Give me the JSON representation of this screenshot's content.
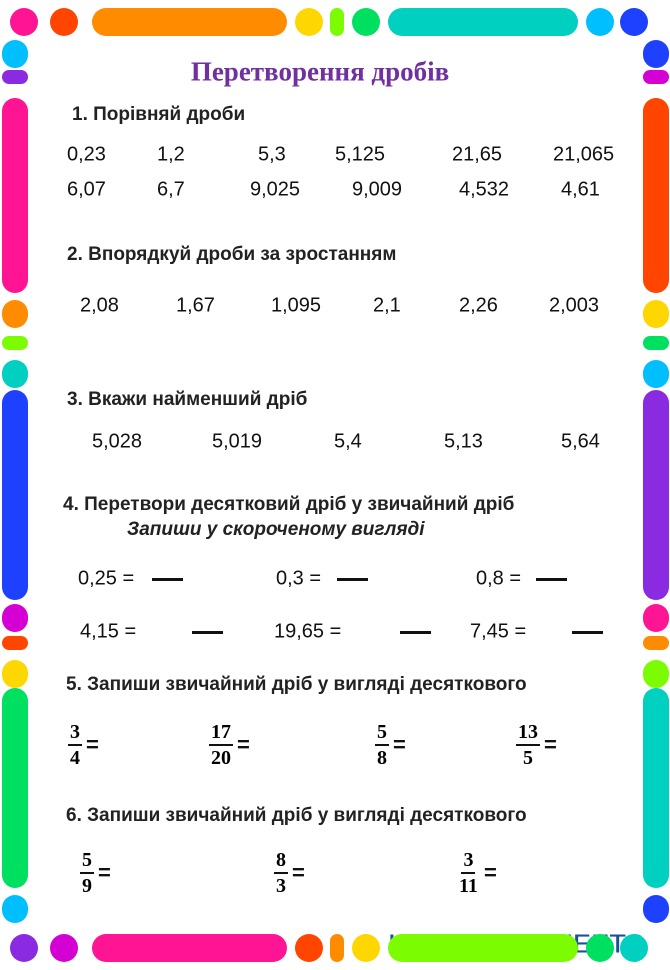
{
  "title": "Перетворення дробів",
  "sections": [
    {
      "heading": "1. Порівняй дроби",
      "rows": [
        [
          "0,23",
          "1,2",
          "5,3",
          "5,125",
          "21,65",
          "21,065"
        ],
        [
          "6,07",
          "6,7",
          "9,025",
          "9,009",
          "4,532",
          "4,61"
        ]
      ]
    },
    {
      "heading": "2. Впорядкуй дроби за зростанням",
      "items": [
        "2,08",
        "1,67",
        "1,095",
        "2,1",
        "2,26",
        "2,003"
      ]
    },
    {
      "heading": "3. Вкажи найменший дріб",
      "items": [
        "5,028",
        "5,019",
        "5,4",
        "5,13",
        "5,64"
      ]
    },
    {
      "heading": "4. Перетвори десятковий дріб у звичайний дріб",
      "subheading": "Запиши у скороченому вигляді",
      "items": [
        "0,25 =",
        "0,3 =",
        "0,8 =",
        "4,15 =",
        "19,65 =",
        "7,45 ="
      ]
    },
    {
      "heading": "5. Запиши звичайний дріб у вигляді десяткового",
      "fractions": [
        {
          "numerator": "3",
          "denominator": "4"
        },
        {
          "numerator": "17",
          "denominator": "20"
        },
        {
          "numerator": "5",
          "denominator": "8"
        },
        {
          "numerator": "13",
          "denominator": "5"
        }
      ]
    },
    {
      "heading": "6. Запиши звичайний дріб у вигляді десяткового",
      "fractions": [
        {
          "numerator": "5",
          "denominator": "9"
        },
        {
          "numerator": "8",
          "denominator": "3"
        },
        {
          "numerator": "3",
          "denominator": "11"
        }
      ]
    }
  ],
  "equals": "=",
  "footer": {
    "logo": "LIVEWORKSHEETS"
  }
}
